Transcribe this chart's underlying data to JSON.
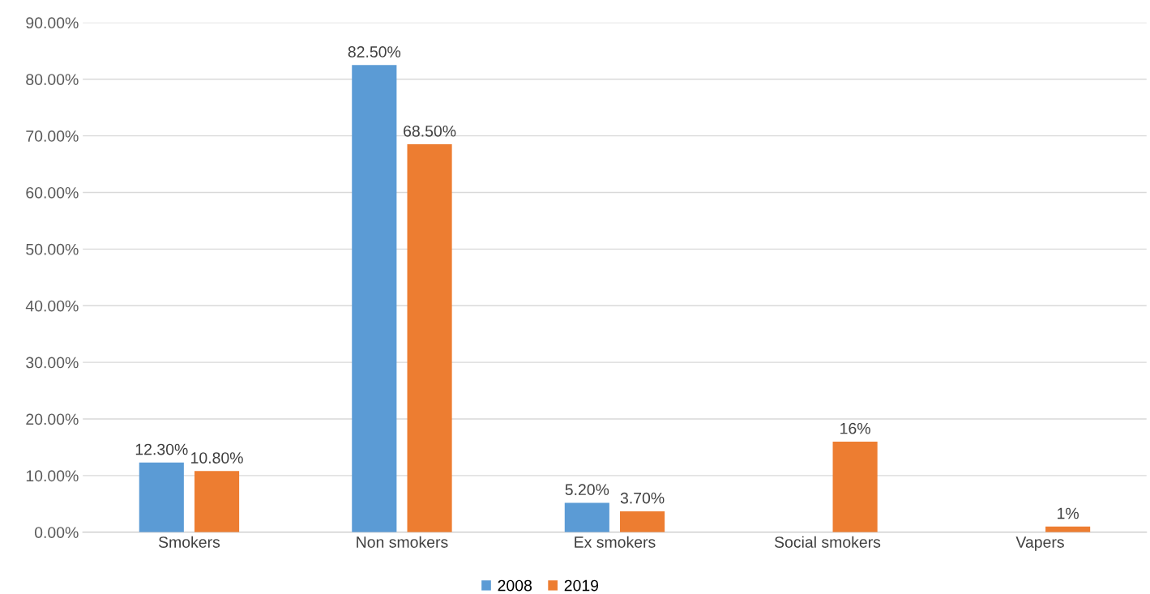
{
  "chart_data": {
    "type": "bar",
    "categories": [
      "Smokers",
      "Non smokers",
      "Ex smokers",
      "Social smokers",
      "Vapers"
    ],
    "series": [
      {
        "name": "2008",
        "color": "#5b9bd5",
        "values": [
          12.3,
          82.5,
          5.2,
          null,
          null
        ],
        "value_labels": [
          "12.30%",
          "82.50%",
          "5.20%",
          null,
          null
        ]
      },
      {
        "name": "2019",
        "color": "#ed7d31",
        "values": [
          10.8,
          68.5,
          3.7,
          16,
          1
        ],
        "value_labels": [
          "10.80%",
          "68.50%",
          "3.70%",
          "16%",
          "1%"
        ]
      }
    ],
    "ylim": [
      0,
      90
    ],
    "yticks": [
      {
        "value": 0,
        "label": "0.00%"
      },
      {
        "value": 10,
        "label": "10.00%"
      },
      {
        "value": 20,
        "label": "20.00%"
      },
      {
        "value": 30,
        "label": "30.00%"
      },
      {
        "value": 40,
        "label": "40.00%"
      },
      {
        "value": 50,
        "label": "50.00%"
      },
      {
        "value": 60,
        "label": "60.00%"
      },
      {
        "value": 70,
        "label": "70.00%"
      },
      {
        "value": 80,
        "label": "80.00%"
      },
      {
        "value": 90,
        "label": "90.00%"
      }
    ],
    "grid": "y",
    "legend": "bottom"
  }
}
